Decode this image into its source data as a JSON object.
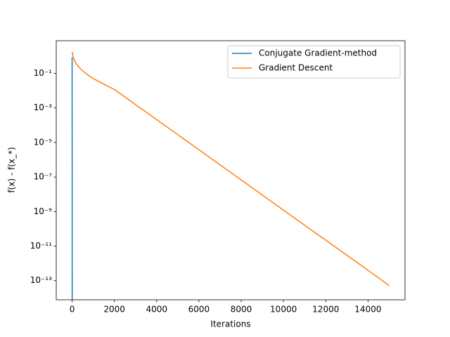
{
  "chart_data": {
    "type": "line",
    "x_label": "Iterations",
    "y_label": "f(x) - f(x_*)",
    "log_y": true,
    "legend": "upper right",
    "xlim": [
      -750,
      15750
    ],
    "xticks": [
      0,
      2000,
      4000,
      6000,
      8000,
      10000,
      12000,
      14000
    ],
    "ylim": [
      7.8e-15,
      7.8
    ],
    "yticks": [
      {
        "value": 1e-13,
        "label": "10⁻¹³"
      },
      {
        "value": 1e-11,
        "label": "10⁻¹¹"
      },
      {
        "value": 1e-09,
        "label": "10⁻⁹"
      },
      {
        "value": 1e-07,
        "label": "10⁻⁷"
      },
      {
        "value": 1e-05,
        "label": "10⁻⁵"
      },
      {
        "value": 0.001,
        "label": "10⁻³"
      },
      {
        "value": 0.1,
        "label": "10⁻¹"
      }
    ],
    "series": [
      {
        "name": "Conjugate Gradient-method",
        "color": "#1f77b4",
        "x": [
          0,
          1,
          2,
          3,
          4,
          5
        ],
        "values": [
          0.85,
          0.01,
          1e-05,
          1e-09,
          1e-14,
          1e-16
        ]
      },
      {
        "name": "Gradient Descent",
        "color": "#ff7f0e",
        "x": [
          0,
          50,
          100,
          200,
          400,
          700,
          1000,
          1500,
          2000,
          4000,
          6000,
          8000,
          10000,
          12000,
          14000,
          15000
        ],
        "values": [
          1.78,
          0.9,
          0.6,
          0.35,
          0.18,
          0.09,
          0.05,
          0.024,
          0.0117,
          0.00021,
          3.8e-06,
          6.8e-08,
          1.2e-09,
          2.2e-11,
          4e-13,
          5.2e-14
        ]
      }
    ]
  }
}
